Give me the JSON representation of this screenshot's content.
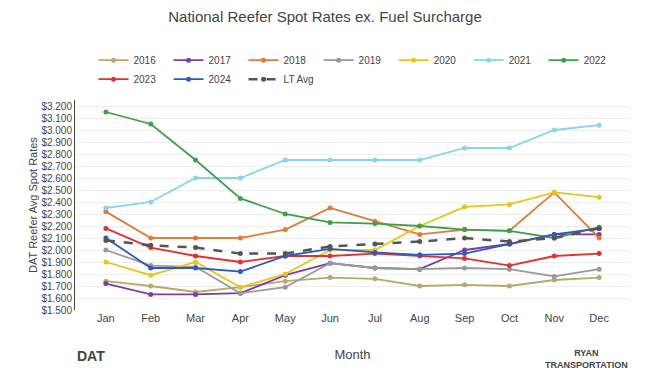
{
  "chart_data": {
    "type": "line",
    "title": "National Reefer Spot Rates ex. Fuel Surcharge",
    "xlabel": "Month",
    "ylabel": "DAT Reefer Avg Spot Rates",
    "categories": [
      "Jan",
      "Feb",
      "Mar",
      "Apr",
      "May",
      "Jun",
      "Jul",
      "Aug",
      "Sep",
      "Oct",
      "Nov",
      "Dec"
    ],
    "series": [
      {
        "name": "2016",
        "color": "#b8a96a",
        "line_style": "solid",
        "marker": "circle",
        "values": [
          1.74,
          1.7,
          1.65,
          1.69,
          1.74,
          1.77,
          1.76,
          1.7,
          1.71,
          1.7,
          1.75,
          1.77
        ]
      },
      {
        "name": "2017",
        "color": "#7b3fa0",
        "line_style": "solid",
        "marker": "circle",
        "values": [
          1.72,
          1.63,
          1.63,
          1.64,
          1.79,
          1.89,
          1.85,
          1.84,
          2.0,
          2.05,
          2.13,
          2.13
        ]
      },
      {
        "name": "2018",
        "color": "#e07b39",
        "line_style": "solid",
        "marker": "circle",
        "values": [
          2.32,
          2.1,
          2.1,
          2.1,
          2.17,
          2.35,
          2.24,
          2.13,
          2.17,
          2.16,
          2.48,
          2.1
        ]
      },
      {
        "name": "2019",
        "color": "#999999",
        "line_style": "solid",
        "marker": "circle",
        "values": [
          2.0,
          1.87,
          1.86,
          1.64,
          1.69,
          1.89,
          1.85,
          1.84,
          1.85,
          1.84,
          1.78,
          1.84
        ]
      },
      {
        "name": "2020",
        "color": "#e8c619",
        "line_style": "solid",
        "marker": "circle",
        "values": [
          1.9,
          1.79,
          1.9,
          1.69,
          1.8,
          2.0,
          2.0,
          2.2,
          2.36,
          2.38,
          2.48,
          2.44
        ]
      },
      {
        "name": "2021",
        "color": "#89d5e8",
        "line_style": "solid",
        "marker": "circle",
        "values": [
          2.35,
          2.4,
          2.6,
          2.6,
          2.75,
          2.75,
          2.75,
          2.75,
          2.85,
          2.85,
          3.0,
          3.04
        ]
      },
      {
        "name": "2022",
        "color": "#3fa04a",
        "line_style": "solid",
        "marker": "circle",
        "values": [
          3.15,
          3.05,
          2.75,
          2.43,
          2.3,
          2.23,
          2.22,
          2.2,
          2.17,
          2.16,
          2.1,
          2.19
        ]
      },
      {
        "name": "2023",
        "color": "#e03030",
        "line_style": "solid",
        "marker": "circle",
        "values": [
          2.18,
          2.02,
          1.95,
          1.9,
          1.95,
          1.95,
          1.97,
          1.95,
          1.93,
          1.87,
          1.95,
          1.97
        ]
      },
      {
        "name": "2024",
        "color": "#2b5abf",
        "line_style": "solid",
        "marker": "circle",
        "values": [
          2.1,
          1.85,
          1.85,
          1.82,
          1.95,
          2.01,
          1.98,
          1.96,
          1.97,
          2.05,
          2.13,
          2.18
        ]
      },
      {
        "name": "LT Avg",
        "color": "#555555",
        "line_style": "dashed",
        "marker": "circle",
        "values": [
          2.08,
          2.04,
          2.02,
          1.97,
          1.97,
          2.03,
          2.05,
          2.07,
          2.1,
          2.07,
          2.1,
          2.18
        ]
      }
    ],
    "ylim": [
      1.5,
      3.25
    ],
    "yticks": [
      {
        "value": 1.5,
        "label": "$1.500"
      },
      {
        "value": 1.6,
        "label": "$1.600"
      },
      {
        "value": 1.7,
        "label": "$1.700"
      },
      {
        "value": 1.8,
        "label": "$1.800"
      },
      {
        "value": 1.9,
        "label": "$1.900"
      },
      {
        "value": 2.0,
        "label": "$2.000"
      },
      {
        "value": 2.1,
        "label": "$2.100"
      },
      {
        "value": 2.2,
        "label": "$2.200"
      },
      {
        "value": 2.3,
        "label": "$2.300"
      },
      {
        "value": 2.4,
        "label": "$2.400"
      },
      {
        "value": 2.5,
        "label": "$2.500"
      },
      {
        "value": 2.6,
        "label": "$2.600"
      },
      {
        "value": 2.7,
        "label": "$2.700"
      },
      {
        "value": 2.8,
        "label": "$2.800"
      },
      {
        "value": 2.9,
        "label": "$2.900"
      },
      {
        "value": 3.0,
        "label": "$3.000"
      },
      {
        "value": 3.1,
        "label": "$3.100"
      },
      {
        "value": 3.2,
        "label": "$3.200"
      }
    ],
    "grid": true,
    "legend": "top",
    "annotations": [
      "DAT",
      "RYAN\nTRANSPORTATION"
    ]
  }
}
